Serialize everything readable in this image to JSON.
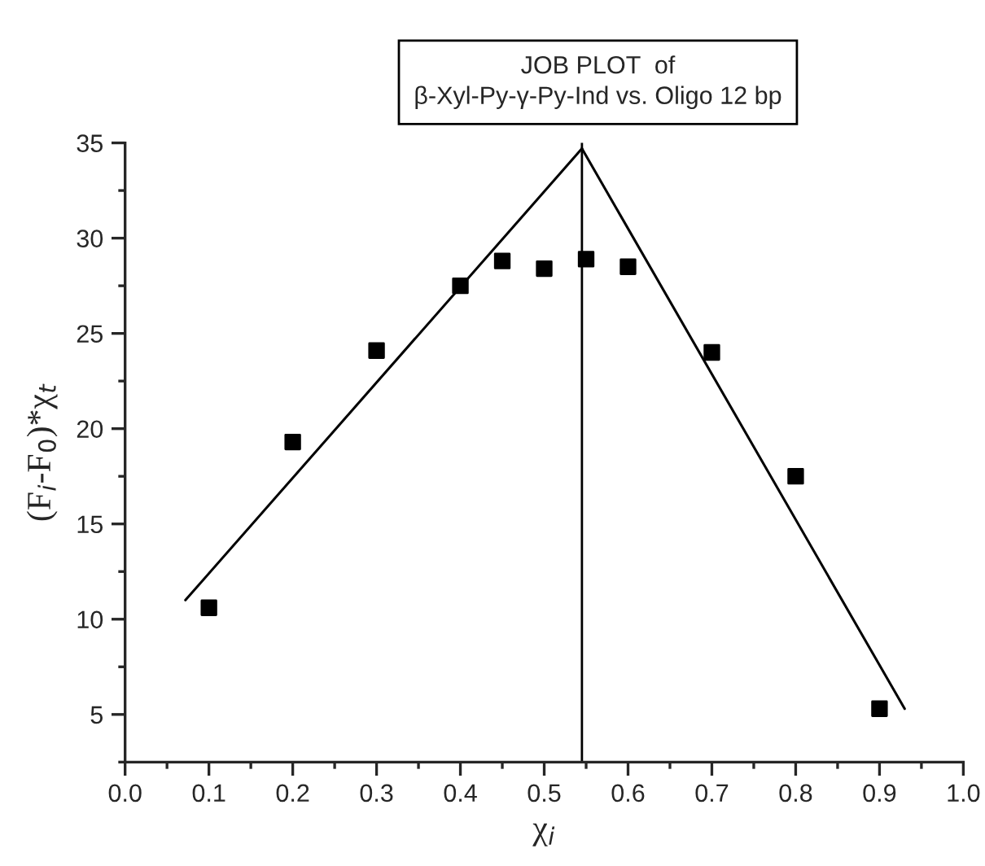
{
  "chart_data": {
    "type": "scatter",
    "title": "JOB PLOT  of\nβ-Xyl-Py-γ-Py-Ind vs. Oligo 12 bp",
    "xlabel": "χ$_{i}$",
    "ylabel": "(F$_{i}$-F$_{0}$)*χ$_{t}$",
    "grid": false,
    "legend": false,
    "series": [
      {
        "color": "#000000",
        "marker": "square",
        "x": [
          0.1,
          0.2,
          0.3,
          0.4,
          0.45,
          0.5,
          0.55,
          0.6,
          0.7,
          0.8,
          0.9
        ],
        "values": [
          10.6,
          19.3,
          24.1,
          27.5,
          28.8,
          28.4,
          28.9,
          28.5,
          24.0,
          17.5,
          5.3
        ]
      },
      {
        "type": "line",
        "color": "#000000",
        "x": [
          0.072,
          0.545
        ],
        "values": [
          11.0,
          34.7
        ]
      },
      {
        "type": "line",
        "color": "#000000",
        "x": [
          0.545,
          0.93
        ],
        "values": [
          34.7,
          5.3
        ]
      }
    ],
    "ref_lines": [
      {
        "axis": "x",
        "value": 0.545,
        "color": "#000000"
      }
    ],
    "xlim": [
      0.0,
      1.0
    ],
    "ylim": [
      2.5,
      35
    ],
    "xticks": [
      {
        "value": 0.0,
        "label": "0.0"
      },
      {
        "value": 0.05,
        "label": null
      },
      {
        "value": 0.1,
        "label": "0.1"
      },
      {
        "value": 0.15,
        "label": null
      },
      {
        "value": 0.2,
        "label": "0.2"
      },
      {
        "value": 0.25,
        "label": null
      },
      {
        "value": 0.3,
        "label": "0.3"
      },
      {
        "value": 0.35,
        "label": null
      },
      {
        "value": 0.4,
        "label": "0.4"
      },
      {
        "value": 0.45,
        "label": null
      },
      {
        "value": 0.5,
        "label": "0.5"
      },
      {
        "value": 0.55,
        "label": null
      },
      {
        "value": 0.6,
        "label": "0.6"
      },
      {
        "value": 0.65,
        "label": null
      },
      {
        "value": 0.7,
        "label": "0.7"
      },
      {
        "value": 0.75,
        "label": null
      },
      {
        "value": 0.8,
        "label": "0.8"
      },
      {
        "value": 0.85,
        "label": null
      },
      {
        "value": 0.9,
        "label": "0.9"
      },
      {
        "value": 0.95,
        "label": null
      },
      {
        "value": 1.0,
        "label": "1.0"
      }
    ],
    "yticks": [
      {
        "value": 2.5,
        "label": null
      },
      5,
      {
        "value": 7.5,
        "label": null
      },
      10,
      {
        "value": 12.5,
        "label": null
      },
      15,
      {
        "value": 17.5,
        "label": null
      },
      20,
      {
        "value": 22.5,
        "label": null
      },
      25,
      {
        "value": 27.5,
        "label": null
      },
      30,
      {
        "value": 32.5,
        "label": null
      },
      35
    ]
  }
}
